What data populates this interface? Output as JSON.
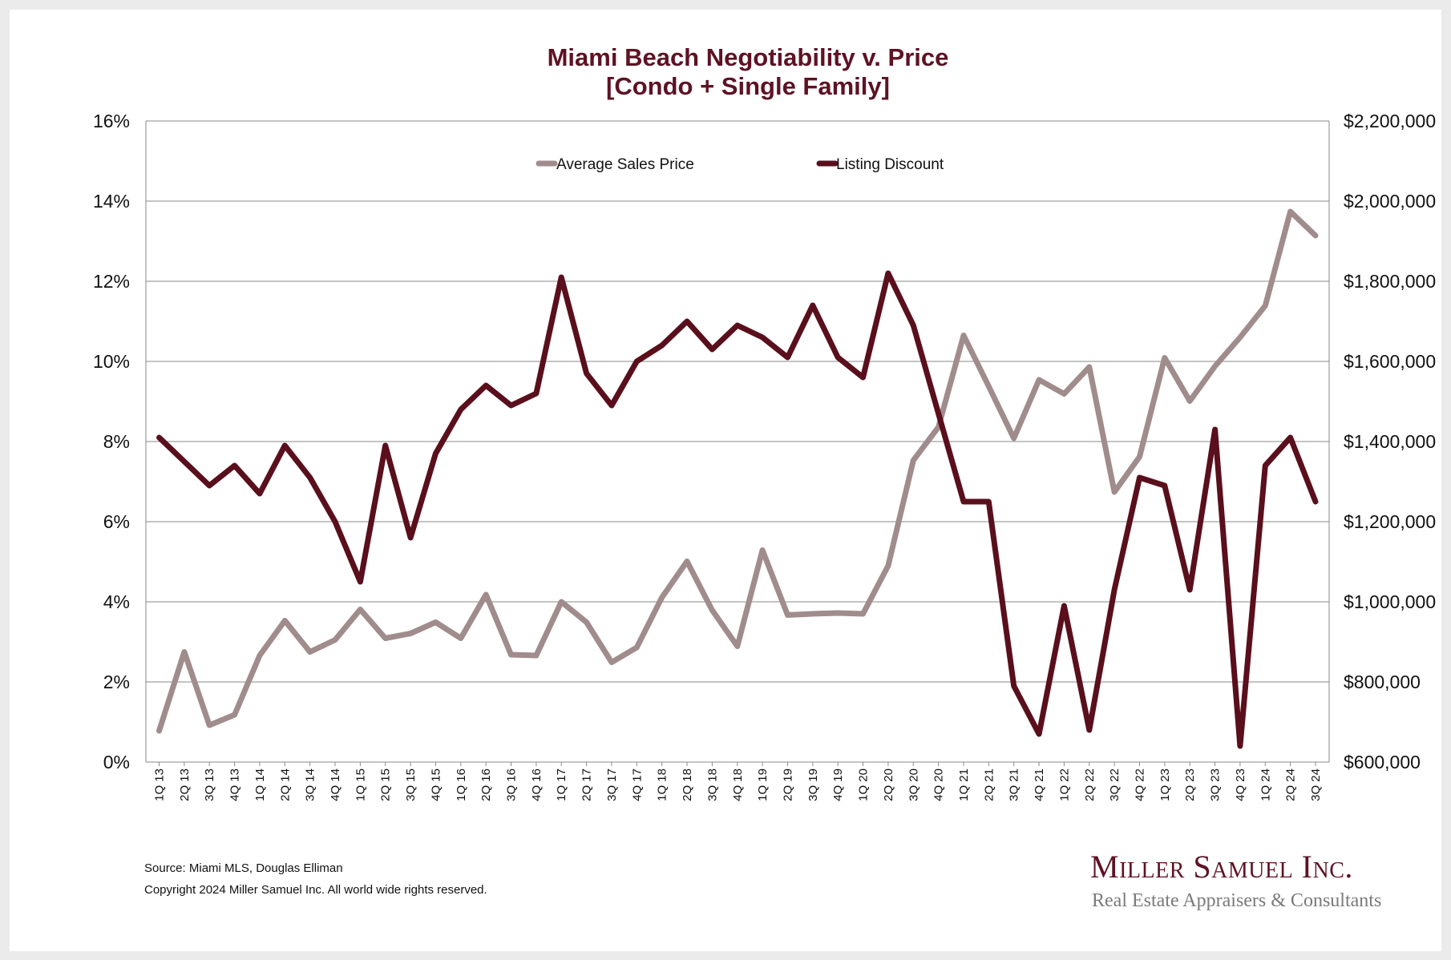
{
  "chart_data": {
    "type": "line",
    "title": "Miami Beach Negotiability v. Price",
    "subtitle": "[Condo + Single Family]",
    "categories": [
      "1Q 13",
      "2Q 13",
      "3Q 13",
      "4Q 13",
      "1Q 14",
      "2Q 14",
      "3Q 14",
      "4Q 14",
      "1Q 15",
      "2Q 15",
      "3Q 15",
      "4Q 15",
      "1Q 16",
      "2Q 16",
      "3Q 16",
      "4Q 16",
      "1Q 17",
      "2Q 17",
      "3Q 17",
      "4Q 17",
      "1Q 18",
      "2Q 18",
      "3Q 18",
      "4Q 18",
      "1Q 19",
      "2Q 19",
      "3Q 19",
      "4Q 19",
      "1Q 20",
      "2Q 20",
      "3Q 20",
      "4Q 20",
      "1Q 21",
      "2Q 21",
      "3Q 21",
      "4Q 21",
      "1Q 22",
      "2Q 22",
      "3Q 22",
      "4Q 22",
      "1Q 23",
      "2Q 23",
      "3Q 23",
      "4Q 23",
      "1Q 24",
      "2Q 24",
      "3Q 24"
    ],
    "series": [
      {
        "name": "Average Sales Price",
        "axis": "right",
        "color": "#a08c8c",
        "values": [
          678000,
          875000,
          692000,
          718000,
          866000,
          953000,
          875000,
          905000,
          981000,
          909000,
          921000,
          949000,
          909000,
          1018000,
          868000,
          866000,
          1000000,
          949000,
          849000,
          886000,
          1011000,
          1101000,
          979000,
          889000,
          1129000,
          967000,
          970000,
          972000,
          970000,
          1090000,
          1353000,
          1436000,
          1665000,
          1538000,
          1408000,
          1554000,
          1519000,
          1586000,
          1274000,
          1362000,
          1609000,
          1501000,
          1588000,
          1660000,
          1739000,
          1974000,
          1914000
        ]
      },
      {
        "name": "Listing Discount",
        "axis": "left",
        "color": "#5a0f1c",
        "values": [
          8.1,
          7.5,
          6.9,
          7.4,
          6.7,
          7.9,
          7.1,
          6.0,
          4.5,
          7.9,
          5.6,
          7.7,
          8.8,
          9.4,
          8.9,
          9.2,
          12.1,
          9.7,
          8.9,
          10.0,
          10.4,
          11.0,
          10.3,
          10.9,
          10.6,
          10.1,
          11.4,
          10.1,
          9.6,
          12.2,
          10.9,
          8.7,
          6.5,
          6.5,
          1.9,
          0.7,
          3.9,
          0.8,
          4.3,
          7.1,
          6.9,
          4.3,
          8.3,
          0.4,
          7.4,
          8.1,
          6.5
        ]
      }
    ],
    "y_left": {
      "range": [
        0,
        16
      ],
      "ticks": [
        "0%",
        "2%",
        "4%",
        "6%",
        "8%",
        "10%",
        "12%",
        "14%",
        "16%"
      ]
    },
    "y_right": {
      "range": [
        600000,
        2200000
      ],
      "ticks": [
        "$600,000",
        "$800,000",
        "$1,000,000",
        "$1,200,000",
        "$1,400,000",
        "$1,600,000",
        "$1,800,000",
        "$2,000,000",
        "$2,200,000"
      ]
    },
    "grid": true,
    "legend_position": "top-center"
  },
  "footer": {
    "source": "Source: Miami MLS, Douglas Elliman",
    "copyright": "Copyright 2024 Miller Samuel Inc.  All world wide rights reserved."
  },
  "logo": {
    "name": "Miller Samuel Inc.",
    "tagline": "Real Estate Appraisers & Consultants"
  }
}
